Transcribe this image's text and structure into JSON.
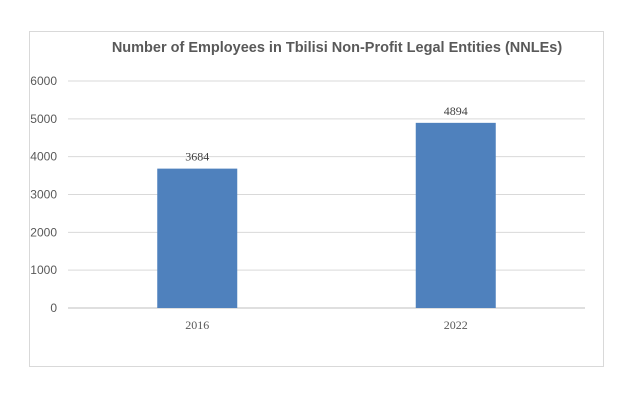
{
  "chart_data": {
    "type": "bar",
    "title": "Number of Employees in Tbilisi Non-Profit Legal Entities (NNLEs)",
    "categories": [
      "2016",
      "2022"
    ],
    "values": [
      3684,
      4894
    ],
    "data_labels": [
      "3684",
      "4894"
    ],
    "yticks": [
      "0",
      "1000",
      "2000",
      "3000",
      "4000",
      "5000",
      "6000"
    ],
    "ylim": [
      0,
      6000
    ],
    "xlabel": "",
    "ylabel": "",
    "grid": true,
    "legend": "none",
    "bar_color": "#4f81bd",
    "grid_color": "#d9d9d9"
  }
}
